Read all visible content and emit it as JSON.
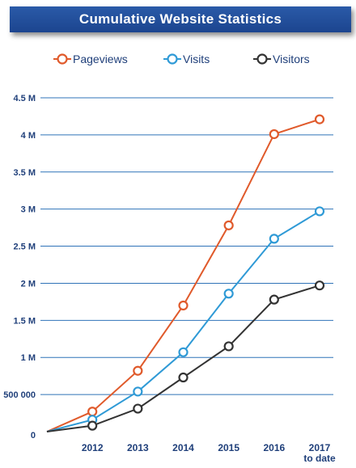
{
  "title": "Cumulative Website Statistics",
  "colors": {
    "pageviews": "#e05a2b",
    "visits": "#2f9ad6",
    "visitors": "#333333",
    "grid": "#2f73b8",
    "axis_text": "#1f3f7a",
    "banner": "#2051a0"
  },
  "chart_data": {
    "type": "line",
    "title": "Cumulative Website Statistics",
    "x": [
      "",
      "2012",
      "2013",
      "2014",
      "2015",
      "2016",
      "2017"
    ],
    "x_tick_labels": [
      "2012",
      "2013",
      "2014",
      "2015",
      "2016",
      "2017"
    ],
    "x_last_sublabel": "to date",
    "y_tick_labels": [
      "0",
      "500 000",
      "1 M",
      "1.5 M",
      "2 M",
      "2.5 M",
      "3 M",
      "3.5 M",
      "4 M",
      "4.5 M"
    ],
    "y_ticks": [
      0,
      500000,
      1000000,
      1500000,
      2000000,
      2500000,
      3000000,
      3500000,
      4000000,
      4500000
    ],
    "ylim": [
      0,
      4500000
    ],
    "xlabel": "",
    "ylabel": "",
    "grid": true,
    "legend_position": "top",
    "series": [
      {
        "name": "Pageviews",
        "color_key": "pageviews",
        "values": [
          0,
          270000,
          820000,
          1700000,
          2780000,
          4010000,
          4210000
        ]
      },
      {
        "name": "Visits",
        "color_key": "visits",
        "values": [
          0,
          160000,
          540000,
          1070000,
          1860000,
          2600000,
          2970000
        ]
      },
      {
        "name": "Visitors",
        "color_key": "visitors",
        "values": [
          0,
          80000,
          310000,
          730000,
          1150000,
          1780000,
          1970000
        ]
      }
    ]
  }
}
